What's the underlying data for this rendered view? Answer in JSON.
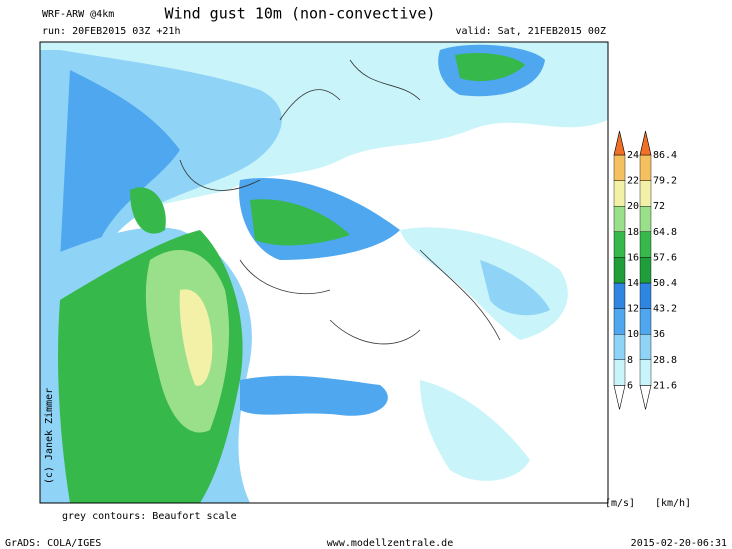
{
  "header": {
    "model": "WRF-ARW @4km",
    "title": "Wind gust 10m (non-convective)",
    "run": "run: 20FEB2015 03Z +21h",
    "valid": "valid: Sat, 21FEB2015 00Z"
  },
  "credit": "(c) Janek Zimmer",
  "note": "grey contours: Beaufort scale",
  "legend": {
    "ms_unit": "[m/s]",
    "kmh_unit": "[km/h]",
    "ms_labels": [
      6,
      8,
      10,
      12,
      14,
      16,
      18,
      20,
      22,
      24
    ],
    "kmh_labels": [
      21.6,
      28.8,
      36,
      43.2,
      50.4,
      57.6,
      64.8,
      72,
      79.2,
      86.4
    ],
    "colors": [
      "#ffffff",
      "#c8f4fa",
      "#8fd3f7",
      "#4ea7ef",
      "#2f86e0",
      "#1f9e3a",
      "#36b84a",
      "#9ae08a",
      "#f3f0a8",
      "#f5c060",
      "#f07028"
    ]
  },
  "footer": {
    "left": "GrADS: COLA/IGES",
    "center": "www.modellzentrale.de",
    "right": "2015-02-20-06:31"
  }
}
